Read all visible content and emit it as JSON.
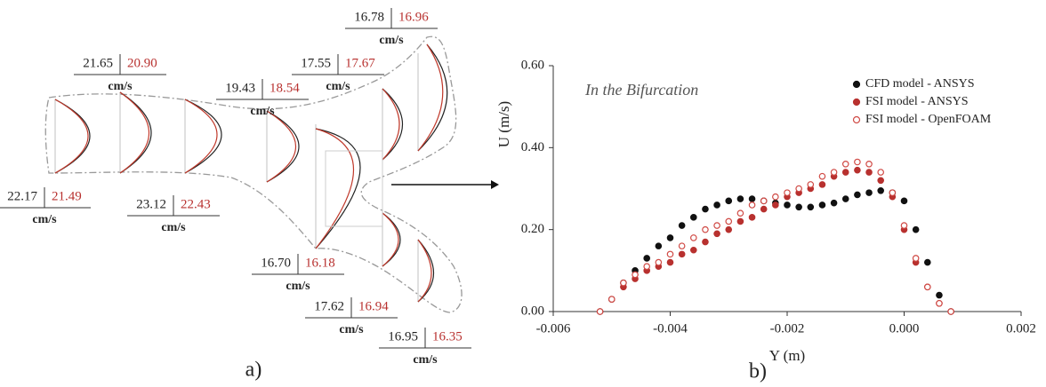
{
  "diagram": {
    "caption": "a)",
    "labels": [
      {
        "black": "21.65",
        "red": "20.90",
        "unit": "cm/s"
      },
      {
        "black": "22.17",
        "red": "21.49",
        "unit": "cm/s"
      },
      {
        "black": "23.12",
        "red": "22.43",
        "unit": "cm/s"
      },
      {
        "black": "19.43",
        "red": "18.54",
        "unit": "cm/s"
      },
      {
        "black": "17.55",
        "red": "17.67",
        "unit": "cm/s"
      },
      {
        "black": "16.78",
        "red": "16.96",
        "unit": "cm/s"
      },
      {
        "black": "16.70",
        "red": "16.18",
        "unit": "cm/s"
      },
      {
        "black": "17.62",
        "red": "16.94",
        "unit": "cm/s"
      },
      {
        "black": "16.95",
        "red": "16.35",
        "unit": "cm/s"
      }
    ]
  },
  "chart_data": {
    "type": "scatter",
    "caption": "b)",
    "annotation": "In the Bifurcation",
    "x_label": "Y (m)",
    "y_label": "U (m/s)",
    "x": [
      -0.0052,
      -0.005,
      -0.0048,
      -0.0046,
      -0.0044,
      -0.0042,
      -0.004,
      -0.0038,
      -0.0036,
      -0.0034,
      -0.0032,
      -0.003,
      -0.0028,
      -0.0026,
      -0.0024,
      -0.0022,
      -0.002,
      -0.0018,
      -0.0016,
      -0.0014,
      -0.0012,
      -0.001,
      -0.0008,
      -0.0006,
      -0.0004,
      -0.0002,
      0,
      0.0002,
      0.0004,
      0.0006,
      0.0008
    ],
    "series": [
      {
        "name": "CFD model - ANSYS",
        "color": "#111111",
        "filled": true,
        "values": [
          0,
          0.03,
          0.07,
          0.1,
          0.13,
          0.16,
          0.18,
          0.21,
          0.23,
          0.25,
          0.26,
          0.27,
          0.275,
          0.275,
          0.27,
          0.265,
          0.26,
          0.255,
          0.255,
          0.26,
          0.265,
          0.275,
          0.285,
          0.29,
          0.295,
          0.29,
          0.27,
          0.2,
          0.12,
          0.04,
          0
        ]
      },
      {
        "name": "FSI model - ANSYS",
        "color": "#b8312f",
        "filled": true,
        "values": [
          0,
          0.03,
          0.06,
          0.08,
          0.1,
          0.11,
          0.12,
          0.14,
          0.15,
          0.17,
          0.19,
          0.2,
          0.22,
          0.23,
          0.25,
          0.26,
          0.28,
          0.29,
          0.3,
          0.31,
          0.33,
          0.34,
          0.345,
          0.34,
          0.32,
          0.28,
          0.2,
          0.12,
          0.06,
          0.02,
          0
        ]
      },
      {
        "name": "FSI model - OpenFOAM",
        "color": "#d04a45",
        "filled": false,
        "values": [
          0,
          0.03,
          0.07,
          0.09,
          0.11,
          0.12,
          0.14,
          0.16,
          0.18,
          0.2,
          0.21,
          0.22,
          0.24,
          0.26,
          0.27,
          0.28,
          0.29,
          0.3,
          0.31,
          0.33,
          0.34,
          0.36,
          0.365,
          0.36,
          0.34,
          0.29,
          0.21,
          0.13,
          0.06,
          0.02,
          0
        ]
      }
    ],
    "xlim": [
      -0.006,
      0.002
    ],
    "xticks": [
      -0.006,
      -0.004,
      -0.002,
      {
        "value": 0,
        "label": "0.000"
      },
      0.002
    ],
    "ylim": [
      0,
      0.6
    ],
    "yticks": [
      {
        "value": 0,
        "label": "0.00"
      },
      {
        "value": 0.2,
        "label": "0.20"
      },
      {
        "value": 0.4,
        "label": "0.40"
      },
      {
        "value": 0.6,
        "label": "0.60"
      }
    ],
    "legend": "top-right"
  }
}
